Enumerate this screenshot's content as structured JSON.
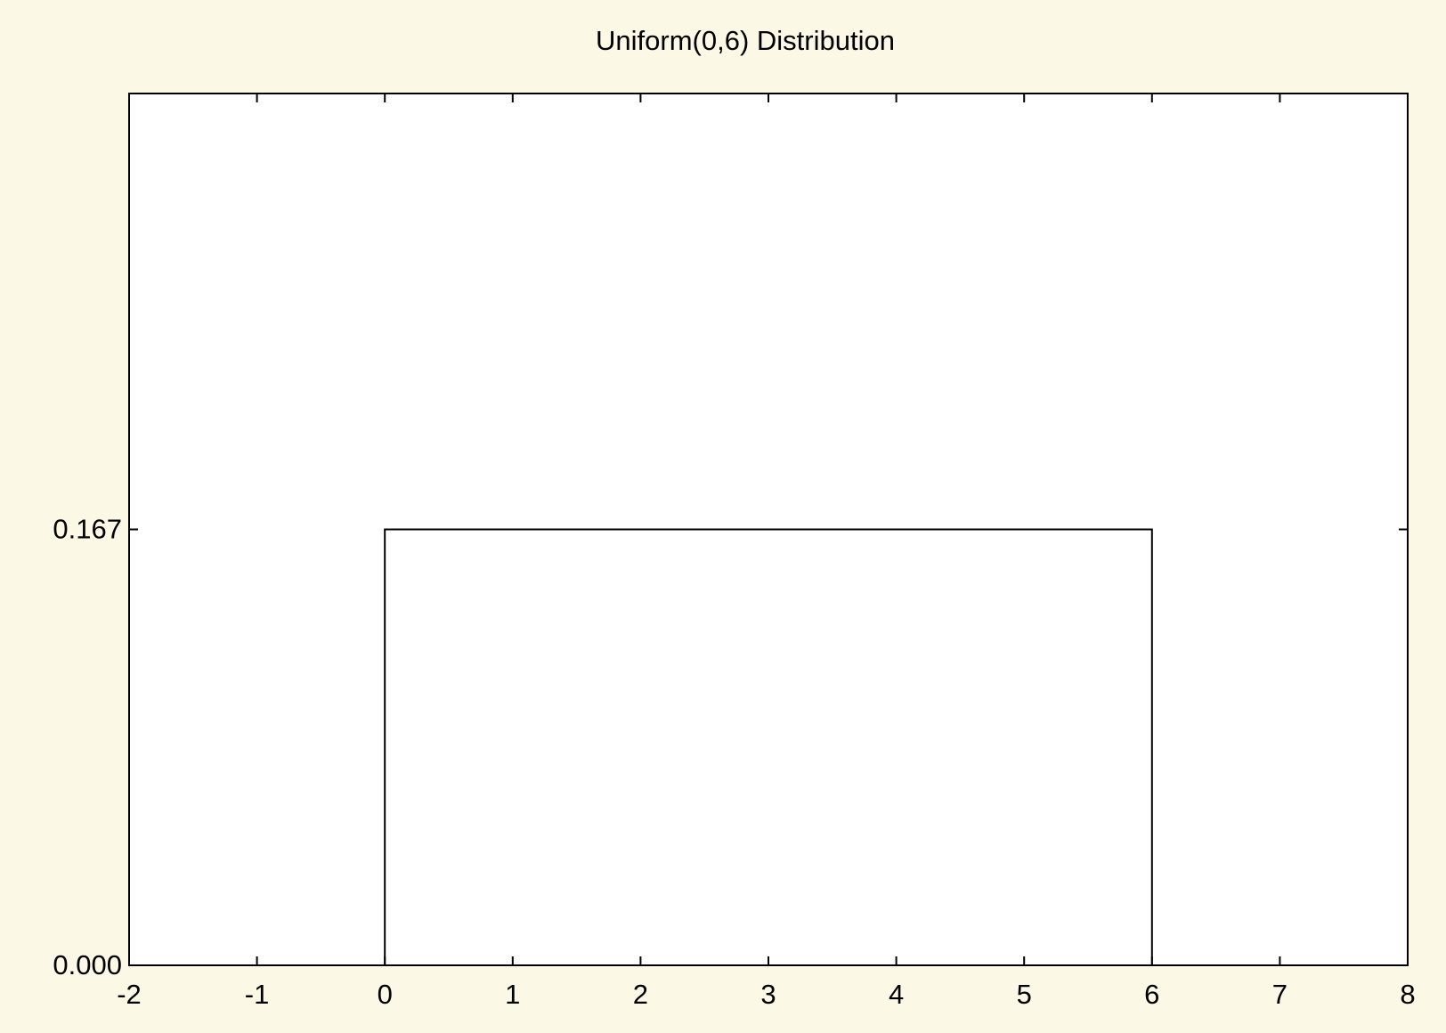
{
  "chart_data": {
    "type": "line",
    "title": "Uniform(0,6) Distribution",
    "x": [
      0,
      0,
      6,
      6
    ],
    "values": [
      0,
      0.167,
      0.167,
      0
    ],
    "color": "#000000",
    "xlim": [
      -2,
      8
    ],
    "xticks": [
      -2,
      -1,
      0,
      1,
      2,
      3,
      4,
      5,
      6,
      7,
      8
    ],
    "ylim": [
      0,
      0.334
    ],
    "yticks": [
      {
        "value": 0,
        "label": "0.000"
      },
      0.167
    ]
  }
}
